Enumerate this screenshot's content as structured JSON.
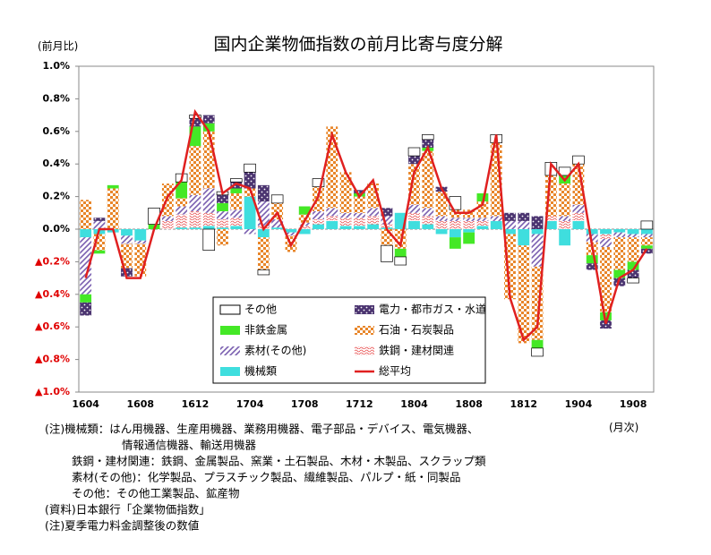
{
  "chart_data": {
    "type": "bar",
    "title": "国内企業物価指数の前月比寄与度分解",
    "y_label": "(前月比)",
    "x_label": "(月次)",
    "categories": [
      "1604",
      null,
      null,
      null,
      "1608",
      null,
      null,
      null,
      "1612",
      null,
      null,
      null,
      "1704",
      null,
      null,
      null,
      "1708",
      null,
      null,
      null,
      "1712",
      null,
      null,
      null,
      "1804",
      null,
      null,
      null,
      "1808",
      null,
      null,
      null,
      "1812",
      null,
      null,
      null,
      "1904",
      null,
      null,
      null,
      "1908",
      null
    ],
    "ylim": [
      -1.0,
      1.0
    ],
    "yticks": [
      {
        "value": 1.0,
        "label": "1.0%"
      },
      {
        "value": 0.8,
        "label": "0.8%"
      },
      {
        "value": 0.6,
        "label": "0.6%"
      },
      {
        "value": 0.4,
        "label": "0.4%"
      },
      {
        "value": 0.2,
        "label": "0.2%"
      },
      {
        "value": 0.0,
        "label": "0.0%"
      },
      {
        "value": -0.2,
        "label": "▲0.2%"
      },
      {
        "value": -0.4,
        "label": "▲0.4%"
      },
      {
        "value": -0.6,
        "label": "▲0.6%"
      },
      {
        "value": -0.8,
        "label": "▲0.8%"
      },
      {
        "value": -1.0,
        "label": "▲1.0%"
      }
    ],
    "grid": false,
    "series": [
      {
        "name": "その他",
        "color": "#ffffff",
        "values": [
          0.0,
          0.0,
          0.0,
          0.0,
          0.0,
          0.1,
          0.0,
          0.05,
          0.02,
          -0.13,
          0.02,
          0.02,
          0.05,
          -0.03,
          0.05,
          0.0,
          0.0,
          0.05,
          0.0,
          0.0,
          0.0,
          0.0,
          -0.1,
          -0.05,
          0.05,
          0.03,
          0.0,
          0.08,
          0.0,
          0.0,
          0.05,
          0.0,
          0.0,
          -0.05,
          0.08,
          0.05,
          0.05,
          0.0,
          0.0,
          0.0,
          -0.03,
          0.05
        ]
      },
      {
        "name": "電力・都市ガス・水道",
        "color": "#4b3470",
        "values": [
          -0.08,
          0.02,
          0.0,
          -0.05,
          0.0,
          0.0,
          0.0,
          0.0,
          0.05,
          0.05,
          0.05,
          0.04,
          0.1,
          0.1,
          0.0,
          0.0,
          0.0,
          0.0,
          0.0,
          0.0,
          0.02,
          0.0,
          0.05,
          0.0,
          0.05,
          0.05,
          0.03,
          0.0,
          0.0,
          0.0,
          0.0,
          0.05,
          0.05,
          0.08,
          0.0,
          0.0,
          0.0,
          -0.04,
          -0.05,
          -0.05,
          -0.05,
          -0.03
        ]
      },
      {
        "name": "非鉄金属",
        "color": "#44e826",
        "values": [
          -0.05,
          -0.02,
          0.02,
          0.0,
          0.0,
          0.03,
          0.0,
          0.1,
          0.12,
          0.05,
          0.05,
          0.03,
          0.0,
          0.0,
          0.0,
          0.0,
          0.05,
          0.0,
          0.0,
          0.0,
          0.02,
          0.0,
          0.0,
          -0.05,
          0.0,
          0.02,
          0.0,
          -0.07,
          -0.07,
          0.05,
          0.0,
          0.0,
          0.0,
          -0.05,
          0.0,
          0.05,
          0.0,
          -0.05,
          -0.05,
          -0.05,
          -0.05,
          -0.02
        ]
      },
      {
        "name": "石油・石炭製品",
        "color": "#e8862a",
        "values": [
          0.18,
          -0.1,
          0.25,
          -0.15,
          -0.2,
          0.0,
          0.2,
          0.05,
          0.3,
          0.35,
          -0.1,
          0.1,
          0.05,
          -0.2,
          0.1,
          -0.1,
          0.05,
          0.15,
          0.5,
          0.25,
          0.1,
          0.15,
          -0.1,
          -0.12,
          0.25,
          0.35,
          0.15,
          0.05,
          0.05,
          0.1,
          0.45,
          -0.4,
          -0.6,
          -0.45,
          0.25,
          0.2,
          0.25,
          -0.08,
          -0.4,
          -0.2,
          -0.15,
          -0.05
        ]
      },
      {
        "name": "素材(その他)",
        "color": "#7a5fb0",
        "values": [
          -0.35,
          0.05,
          0.0,
          -0.05,
          -0.02,
          0.0,
          0.03,
          0.05,
          0.1,
          0.15,
          0.05,
          0.05,
          -0.03,
          0.15,
          0.05,
          -0.02,
          0.02,
          0.05,
          0.05,
          0.03,
          0.03,
          0.05,
          0.05,
          0.0,
          0.05,
          0.05,
          0.03,
          0.02,
          0.02,
          0.02,
          0.03,
          0.05,
          0.05,
          -0.2,
          0.0,
          0.03,
          0.05,
          -0.05,
          -0.05,
          -0.03,
          -0.02,
          -0.02
        ]
      },
      {
        "name": "鉄鋼・建材関連",
        "color": "#e84a4a",
        "values": [
          0.0,
          0.0,
          0.0,
          0.0,
          0.0,
          0.0,
          0.05,
          0.08,
          0.1,
          0.08,
          0.05,
          0.05,
          0.0,
          0.02,
          0.0,
          0.0,
          0.02,
          0.03,
          0.03,
          0.05,
          0.05,
          0.05,
          0.02,
          0.0,
          0.05,
          0.05,
          0.05,
          0.05,
          0.05,
          0.03,
          0.0,
          0.0,
          0.0,
          0.0,
          0.03,
          0.05,
          0.05,
          0.0,
          -0.03,
          0.0,
          0.0,
          0.0
        ]
      },
      {
        "name": "機械類",
        "color": "#3fdede",
        "values": [
          -0.05,
          -0.03,
          -0.02,
          -0.04,
          -0.07,
          0.0,
          0.0,
          0.01,
          0.01,
          0.02,
          0.01,
          0.02,
          0.2,
          -0.05,
          0.01,
          -0.02,
          -0.03,
          0.03,
          0.05,
          0.02,
          0.02,
          0.03,
          0.01,
          0.1,
          0.05,
          0.03,
          -0.03,
          -0.05,
          -0.02,
          0.02,
          0.05,
          -0.03,
          -0.1,
          -0.03,
          0.05,
          -0.1,
          0.05,
          -0.03,
          -0.03,
          -0.02,
          -0.03,
          -0.03
        ]
      },
      {
        "name": "総平均",
        "type": "line",
        "color": "#e02020",
        "values": [
          -0.3,
          0.0,
          0.0,
          -0.3,
          -0.3,
          0.0,
          0.2,
          0.3,
          0.72,
          0.6,
          0.22,
          0.28,
          0.25,
          0.0,
          0.1,
          -0.1,
          0.05,
          0.2,
          0.58,
          0.35,
          0.2,
          0.3,
          0.0,
          -0.1,
          0.35,
          0.5,
          0.25,
          0.1,
          0.1,
          0.15,
          0.58,
          -0.42,
          -0.68,
          -0.6,
          0.4,
          0.3,
          0.4,
          -0.1,
          -0.58,
          -0.3,
          -0.25,
          -0.12
        ]
      }
    ],
    "notes": [
      "(注)機械類：はん用機器、生産用機器、業務用機器、電子部品・デバイス、電気機器、",
      "情報通信機器、輸送用機器",
      "鉄鋼・建材関連：鉄鋼、金属製品、窯業・土石製品、木材・木製品、スクラップ類",
      "素材(その他)：化学製品、プラスチック製品、繊維製品、パルプ・紙・同製品",
      "その他：その他工業製品、鉱産物",
      "(資料)日本銀行「企業物価指数」",
      "(注)夏季電力料金調整後の数値"
    ]
  }
}
